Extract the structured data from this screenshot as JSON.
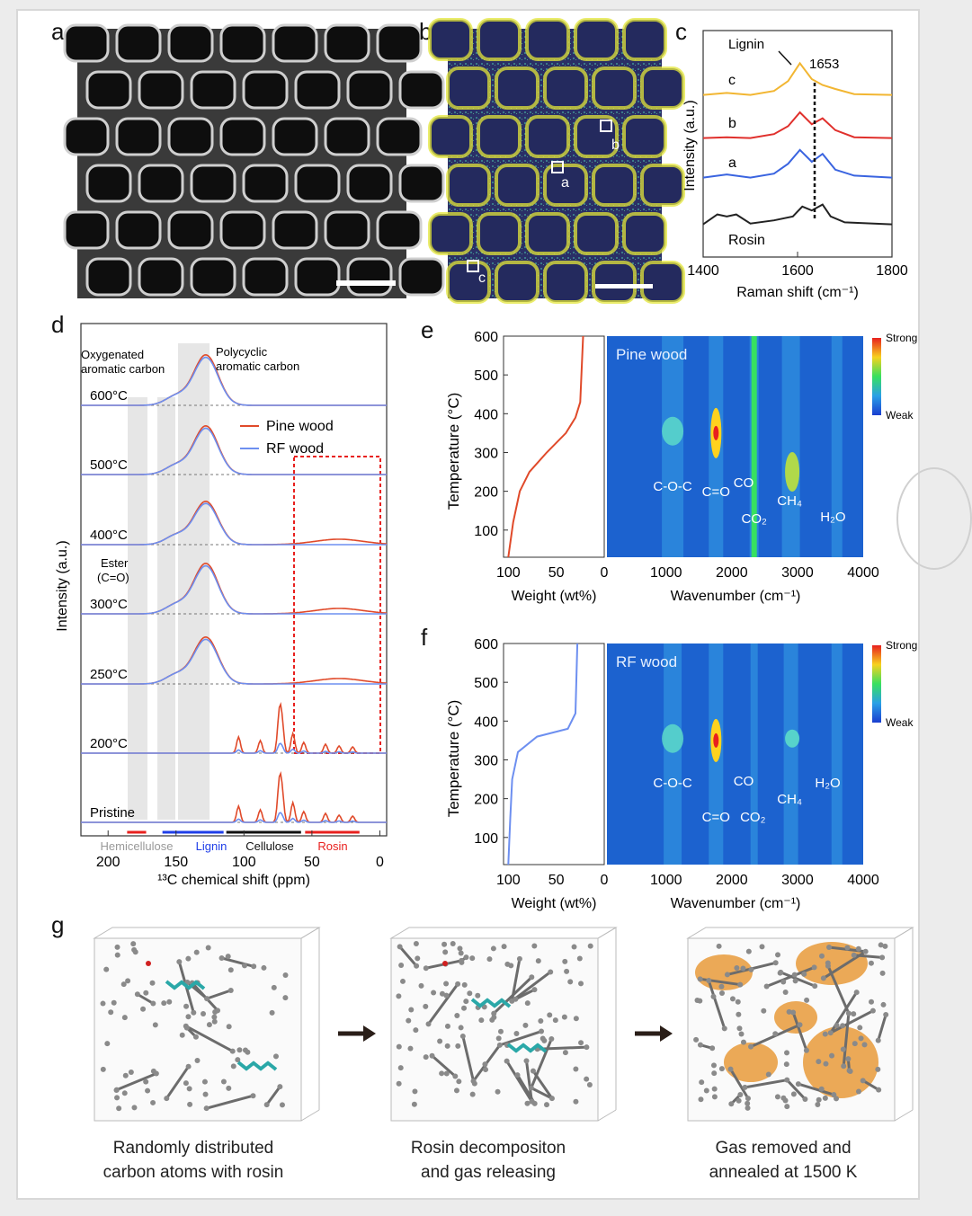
{
  "panels": {
    "a": {
      "letter": "a"
    },
    "b": {
      "letter": "b",
      "markers": [
        "a",
        "b",
        "c"
      ]
    },
    "c": {
      "letter": "c"
    },
    "d": {
      "letter": "d"
    },
    "e": {
      "letter": "e",
      "map_title": "Pine wood",
      "scale_strong": "Strong",
      "scale_weak": "Weak"
    },
    "f": {
      "letter": "f",
      "map_title": "RF wood",
      "scale_strong": "Strong",
      "scale_weak": "Weak"
    },
    "g": {
      "letter": "g"
    }
  },
  "chart_data": [
    {
      "id": "c",
      "type": "line",
      "xlabel": "Raman shift (cm⁻¹)",
      "ylabel": "Intensity (a.u.)",
      "xlim": [
        1400,
        1800
      ],
      "xticks": [
        "1400",
        "1600",
        "1800"
      ],
      "annotations": [
        "Lignin",
        "1653"
      ],
      "series": [
        {
          "name": "c",
          "color": "#f2b632",
          "x": [
            1400,
            1450,
            1500,
            1550,
            1580,
            1605,
            1630,
            1653,
            1680,
            1720,
            1800
          ],
          "y": [
            0.1,
            0.15,
            0.1,
            0.2,
            0.45,
            0.9,
            0.5,
            0.35,
            0.25,
            0.12,
            0.1
          ]
        },
        {
          "name": "b",
          "color": "#e0302c",
          "x": [
            1400,
            1450,
            1500,
            1550,
            1580,
            1605,
            1630,
            1653,
            1680,
            1720,
            1800
          ],
          "y": [
            0.1,
            0.12,
            0.1,
            0.2,
            0.4,
            0.75,
            0.45,
            0.6,
            0.3,
            0.12,
            0.1
          ]
        },
        {
          "name": "a",
          "color": "#3a64e0",
          "x": [
            1400,
            1450,
            1500,
            1550,
            1580,
            1605,
            1630,
            1653,
            1680,
            1720,
            1800
          ],
          "y": [
            0.1,
            0.18,
            0.1,
            0.2,
            0.45,
            0.8,
            0.5,
            0.7,
            0.3,
            0.15,
            0.1
          ]
        },
        {
          "name": "Rosin",
          "color": "#222222",
          "x": [
            1400,
            1430,
            1450,
            1470,
            1500,
            1550,
            1590,
            1610,
            1630,
            1653,
            1670,
            1700,
            1800
          ],
          "y": [
            0.1,
            0.35,
            0.3,
            0.35,
            0.12,
            0.2,
            0.3,
            0.55,
            0.45,
            0.6,
            0.3,
            0.15,
            0.1
          ]
        }
      ]
    },
    {
      "id": "d",
      "type": "line",
      "xlabel": "¹³C chemical shift (ppm)",
      "ylabel": "Intensity (a.u.)",
      "xlim": [
        220,
        -5
      ],
      "xticks": [
        "200",
        "150",
        "100",
        "50",
        "0"
      ],
      "legend": [
        "Pine wood",
        "RF wood"
      ],
      "temperatures": [
        "600°C",
        "500°C",
        "400°C",
        "300°C",
        "250°C",
        "200°C",
        "Pristine"
      ],
      "annotations": [
        "Oxygenated",
        "aromatic carbon",
        "Polycyclic",
        "aromatic carbon",
        "Ester",
        "(C=O)"
      ],
      "region_labels": [
        "Hemicellulose",
        "Lignin",
        "Cellulose",
        "Rosin"
      ]
    },
    {
      "id": "e",
      "type": "heatmap",
      "ylabel": "Temperature (°C)",
      "xlabel_left": "Weight (wt%)",
      "xlabel_right": "Wavenumber (cm⁻¹)",
      "yticks": [
        "100",
        "200",
        "300",
        "400",
        "500",
        "600"
      ],
      "xticks_left": [
        "100",
        "50",
        "0"
      ],
      "xticks_right": [
        "1000",
        "2000",
        "3000",
        "4000"
      ],
      "peaks": [
        "C-O-C",
        "C=O",
        "CO",
        "CO₂",
        "CH₄",
        "H₂O"
      ]
    },
    {
      "id": "f",
      "type": "heatmap",
      "ylabel": "Temperature (°C)",
      "xlabel_left": "Weight (wt%)",
      "xlabel_right": "Wavenumber (cm⁻¹)",
      "yticks": [
        "100",
        "200",
        "300",
        "400",
        "500",
        "600"
      ],
      "xticks_left": [
        "100",
        "50",
        "0"
      ],
      "xticks_right": [
        "1000",
        "2000",
        "3000",
        "4000"
      ],
      "peaks": [
        "C-O-C",
        "CO",
        "C=O",
        "CO₂",
        "CH₄",
        "H₂O"
      ]
    }
  ],
  "simulation": {
    "captions": [
      {
        "line1": "Randomly distributed",
        "line2": "carbon atoms with rosin"
      },
      {
        "line1": "Rosin decompositon",
        "line2": "and gas releasing"
      },
      {
        "line1": "Gas removed and",
        "line2": "annealed at 1500 K"
      }
    ]
  }
}
